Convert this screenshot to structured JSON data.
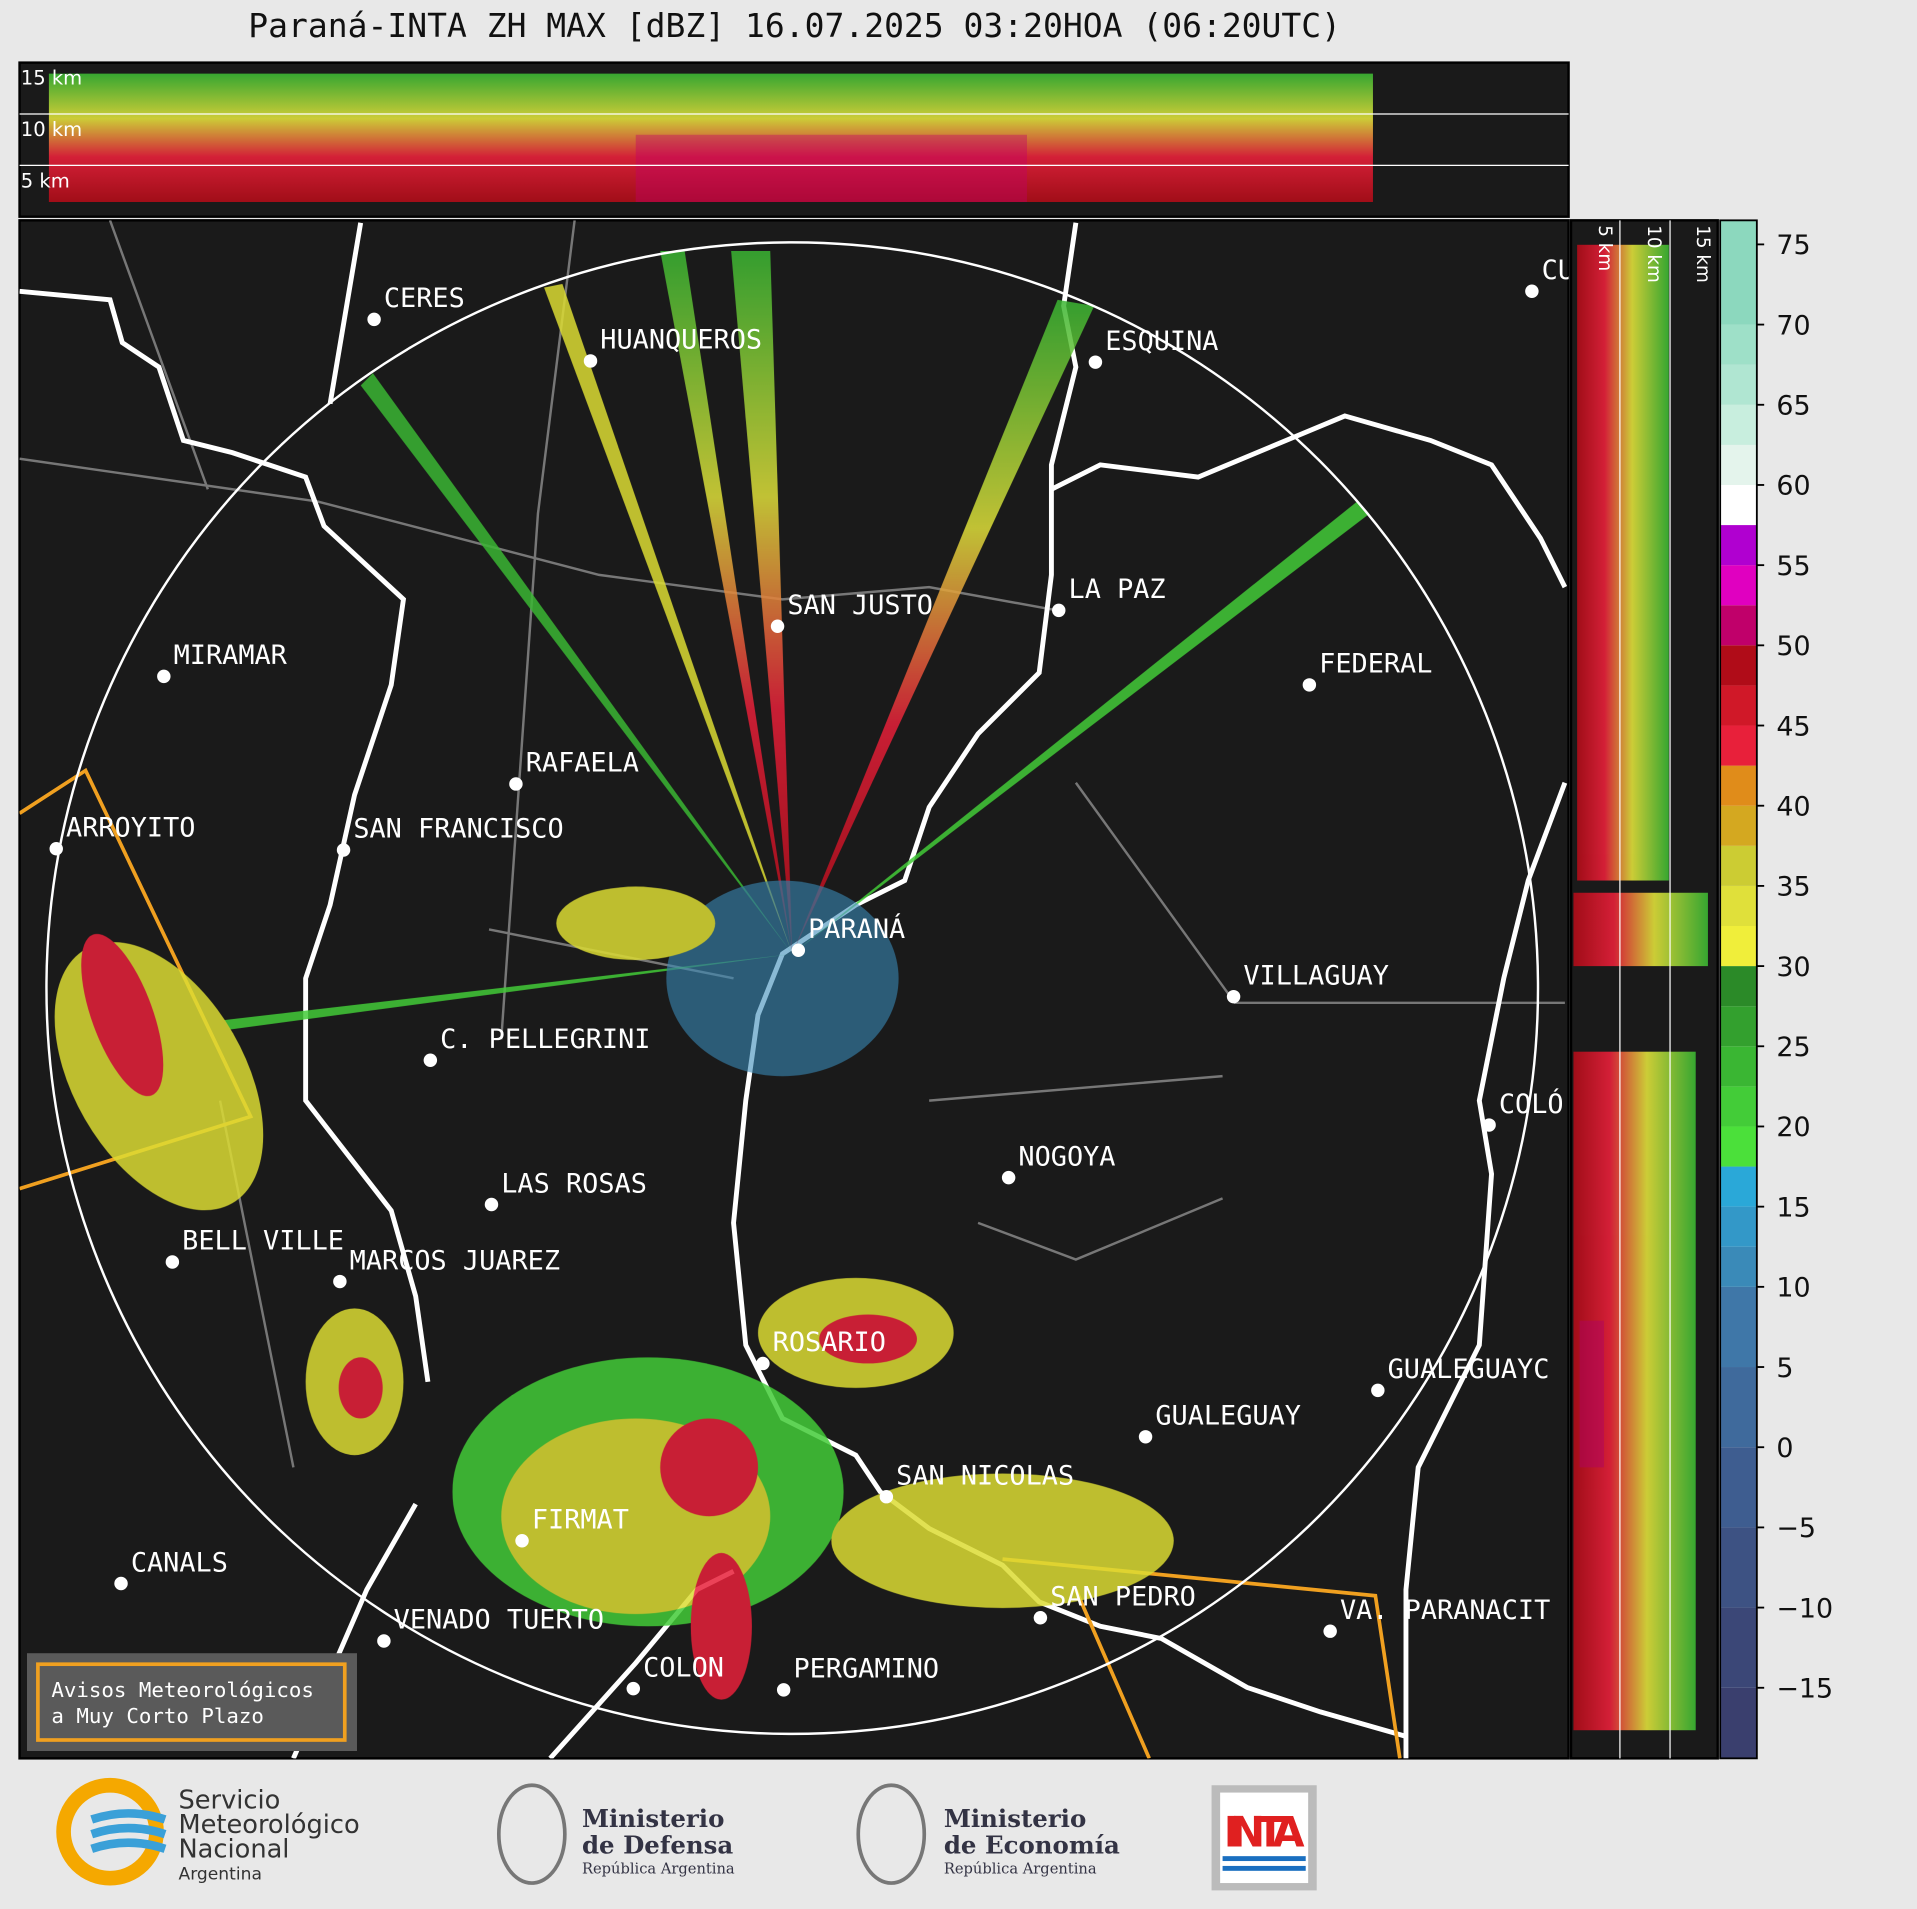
{
  "header": {
    "title": "Paraná-INTA ZH MAX [dBZ] 16.07.2025 03:20HOA (06:20UTC)"
  },
  "height_panel": {
    "labels": [
      "15 km",
      "10 km",
      "5 km"
    ]
  },
  "side_panel": {
    "labels": [
      "5 km",
      "10 km",
      "15 km"
    ]
  },
  "colorbar": {
    "lim": [
      -19.4,
      76.5
    ],
    "ticks": [
      75,
      70,
      65,
      60,
      55,
      50,
      45,
      40,
      35,
      30,
      25,
      20,
      15,
      10,
      5,
      0,
      {
        "value": -5,
        "label": "−5"
      },
      {
        "value": -10,
        "label": "−10"
      },
      {
        "value": -15,
        "label": "−15"
      }
    ],
    "bands": [
      {
        "from": -19.4,
        "color": "#3a3f6e"
      },
      {
        "from": -15,
        "color": "#3b4777"
      },
      {
        "from": -10,
        "color": "#3d5283"
      },
      {
        "from": -5,
        "color": "#3e5d90"
      },
      {
        "from": 0,
        "color": "#3f6a9c"
      },
      {
        "from": 5,
        "color": "#3f77a8"
      },
      {
        "from": 10,
        "color": "#3a8ab8"
      },
      {
        "from": 12.5,
        "color": "#3398c8"
      },
      {
        "from": 15,
        "color": "#2aa8d8"
      },
      {
        "from": 17.5,
        "color": "#4be03a"
      },
      {
        "from": 20,
        "color": "#43cc38"
      },
      {
        "from": 22.5,
        "color": "#3ab633"
      },
      {
        "from": 25,
        "color": "#33a02e"
      },
      {
        "from": 27.5,
        "color": "#2b8a28"
      },
      {
        "from": 30,
        "color": "#f0ee3a"
      },
      {
        "from": 32.5,
        "color": "#e0e03a"
      },
      {
        "from": 35,
        "color": "#cccc33"
      },
      {
        "from": 37.5,
        "color": "#d4a820"
      },
      {
        "from": 40,
        "color": "#e08c1a"
      },
      {
        "from": 42.5,
        "color": "#e8203a"
      },
      {
        "from": 45,
        "color": "#d01828"
      },
      {
        "from": 47.5,
        "color": "#b00c18"
      },
      {
        "from": 50,
        "color": "#c0006a"
      },
      {
        "from": 52.5,
        "color": "#e000c0"
      },
      {
        "from": 55,
        "color": "#b000d0"
      },
      {
        "from": 57.5,
        "color": "#ffffff"
      },
      {
        "from": 60,
        "color": "#e4f4ec"
      },
      {
        "from": 62.5,
        "color": "#c8eede"
      },
      {
        "from": 65,
        "color": "#b0e6d2"
      },
      {
        "from": 67.5,
        "color": "#9ee0c8"
      },
      {
        "from": 70,
        "color": "#8cd8be"
      }
    ]
  },
  "map": {
    "cities": [
      "CERES",
      "HUANQUEROS",
      "ESQUINA",
      "SAN JUSTO",
      "LA PAZ",
      "MIRAMAR",
      "FEDERAL",
      "RAFAELA",
      "ARROYITO",
      "SAN FRANCISCO",
      "PARANÁ",
      "VILLAGUAY",
      "C. PELLEGRINI",
      "COLÓ",
      "NOGOYA",
      "LAS ROSAS",
      "BELL VILLE",
      "MARCOS JUAREZ",
      "ROSARIO",
      "GUALEGUAYC",
      "GUALEGUAY",
      "SAN NICOLAS",
      "FIRMAT",
      "CANALS",
      "SAN PEDRO",
      "VENADO TUERTO",
      "VA. PARANACIT",
      "COLON",
      "PERGAMINO",
      "CU"
    ]
  },
  "notice": {
    "lines": [
      "Avisos Meteorológicos",
      "a Muy Corto Plazo"
    ]
  },
  "footer": {
    "smn": [
      "Servicio",
      "Meteorológico",
      "Nacional",
      "Argentina"
    ],
    "defensa": [
      "Ministerio",
      "de Defensa",
      "República Argentina"
    ],
    "economia": [
      "Ministerio",
      "de Economía",
      "República Argentina"
    ],
    "inta": "INTA"
  }
}
